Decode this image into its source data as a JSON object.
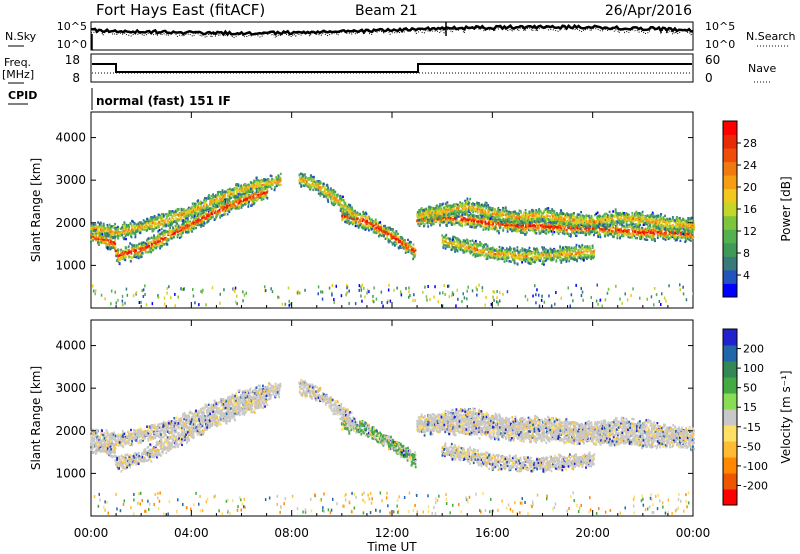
{
  "header": {
    "station": "Fort Hays East (fitACF)",
    "beam": "Beam 21",
    "date": "26/Apr/2016"
  },
  "top_panels": {
    "nsky_label": "N.Sky",
    "nsky_ticks": [
      "10^5",
      "10^0"
    ],
    "nsearch_label": "N.Search",
    "nsearch_ticks": [
      "10^5",
      "10^0"
    ],
    "freq_label": "Freq.",
    "freq_unit": "[MHz]",
    "freq_ticks": [
      "18",
      "8"
    ],
    "nave_label": "Nave",
    "nave_ticks": [
      "60",
      "0"
    ],
    "cpid_label": "CPID",
    "cpid_text": "normal (fast) 151 IF"
  },
  "colors": {
    "power": [
      "#0000ff",
      "#2255bb",
      "#3a7a7a",
      "#3f9a5a",
      "#55b050",
      "#7ec53d",
      "#c5d62a",
      "#f0c81e",
      "#f59e14",
      "#f07a10",
      "#ee4e0a",
      "#e82a06",
      "#ff0000"
    ],
    "velocity": [
      "#ff0000",
      "#ee5500",
      "#ff8800",
      "#ffbb33",
      "#ffe066",
      "#c8c8c8",
      "#88dd55",
      "#44aa44",
      "#338855",
      "#2266aa",
      "#2222cc"
    ]
  },
  "chart_data": [
    {
      "type": "heatmap",
      "name": "power",
      "ylabel": "Slant Range [km]",
      "colorbar_label": "Power [dB]",
      "colorbar_ticks": [
        "28",
        "24",
        "20",
        "16",
        "12",
        "8",
        "4"
      ],
      "ylim": [
        0,
        4600
      ],
      "yticks": [
        {
          "value": 1000,
          "label": "1000"
        },
        {
          "value": 2000,
          "label": "2000"
        },
        {
          "value": 3000,
          "label": "3000"
        },
        {
          "value": 4000,
          "label": "4000"
        }
      ]
    },
    {
      "type": "heatmap",
      "name": "velocity",
      "ylabel": "Slant Range [km]",
      "colorbar_label": "Velocity [m s⁻¹]",
      "colorbar_ticks": [
        "200",
        "100",
        "50",
        "15",
        "-15",
        "-50",
        "-100",
        "-200"
      ],
      "ylim": [
        0,
        4600
      ],
      "yticks": [
        {
          "value": 1000,
          "label": "1000"
        },
        {
          "value": 2000,
          "label": "2000"
        },
        {
          "value": 3000,
          "label": "3000"
        },
        {
          "value": 4000,
          "label": "4000"
        }
      ]
    }
  ],
  "time_axis": {
    "xlabel": "Time UT",
    "xlim_hours": [
      0,
      24
    ],
    "ticks": [
      {
        "hour": 0,
        "label": "00:00"
      },
      {
        "hour": 4,
        "label": "04:00"
      },
      {
        "hour": 8,
        "label": "08:00"
      },
      {
        "hour": 12,
        "label": "12:00"
      },
      {
        "hour": 16,
        "label": "16:00"
      },
      {
        "hour": 20,
        "label": "20:00"
      },
      {
        "hour": 24,
        "label": "00:00"
      }
    ]
  },
  "echo_bands": [
    {
      "points": [
        [
          0,
          1900
        ],
        [
          1,
          1800
        ],
        [
          2.5,
          2000
        ],
        [
          4,
          2300
        ],
        [
          5.5,
          2700
        ],
        [
          6.5,
          2900
        ],
        [
          7.5,
          3000
        ]
      ]
    },
    {
      "points": [
        [
          0,
          1700
        ],
        [
          0.9,
          1550
        ],
        [
          1,
          1250
        ],
        [
          2,
          1400
        ],
        [
          3,
          1700
        ],
        [
          4,
          2000
        ],
        [
          5,
          2300
        ],
        [
          6,
          2550
        ],
        [
          7,
          2750
        ]
      ]
    },
    {
      "points": [
        [
          10,
          2200
        ],
        [
          11,
          2050
        ],
        [
          12,
          1700
        ],
        [
          12.9,
          1350
        ]
      ]
    },
    {
      "points": [
        [
          13,
          2100
        ],
        [
          14,
          2150
        ],
        [
          15,
          2100
        ],
        [
          16,
          2000
        ],
        [
          17,
          1950
        ],
        [
          18,
          1950
        ],
        [
          19,
          1900
        ],
        [
          20,
          1900
        ],
        [
          21,
          1850
        ],
        [
          22,
          1800
        ],
        [
          23,
          1800
        ],
        [
          24,
          1750
        ]
      ]
    },
    {
      "points": [
        [
          13,
          2200
        ],
        [
          14,
          2300
        ],
        [
          15,
          2400
        ],
        [
          16,
          2250
        ],
        [
          17,
          2150
        ],
        [
          18,
          2200
        ],
        [
          19,
          2100
        ],
        [
          20,
          2050
        ],
        [
          21,
          2150
        ],
        [
          22,
          2100
        ],
        [
          23,
          2000
        ],
        [
          24,
          1950
        ]
      ]
    },
    {
      "points": [
        [
          14,
          1600
        ],
        [
          15,
          1450
        ],
        [
          16,
          1300
        ],
        [
          17,
          1250
        ],
        [
          18,
          1250
        ],
        [
          19,
          1300
        ],
        [
          20,
          1350
        ]
      ]
    },
    {
      "points": [
        [
          8.3,
          3050
        ],
        [
          9,
          2900
        ],
        [
          9.8,
          2550
        ],
        [
          10.5,
          2200
        ]
      ]
    }
  ]
}
